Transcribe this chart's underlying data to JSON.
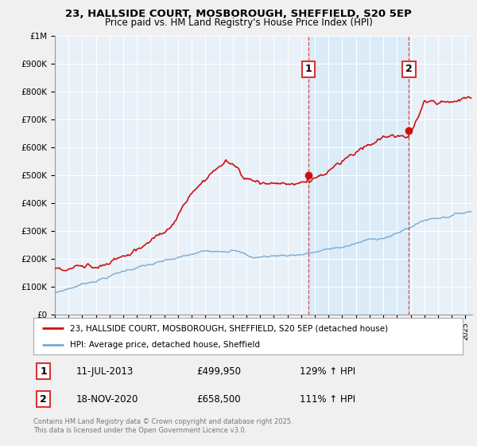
{
  "title": "23, HALLSIDE COURT, MOSBOROUGH, SHEFFIELD, S20 5EP",
  "subtitle": "Price paid vs. HM Land Registry's House Price Index (HPI)",
  "legend_line1": "23, HALLSIDE COURT, MOSBOROUGH, SHEFFIELD, S20 5EP (detached house)",
  "legend_line2": "HPI: Average price, detached house, Sheffield",
  "sale1_date": "11-JUL-2013",
  "sale1_price": "£499,950",
  "sale1_hpi": "129% ↑ HPI",
  "sale1_year": 2013.53,
  "sale1_value": 499950,
  "sale2_date": "18-NOV-2020",
  "sale2_price": "£658,500",
  "sale2_hpi": "111% ↑ HPI",
  "sale2_year": 2020.88,
  "sale2_value": 658500,
  "ylim": [
    0,
    1000000
  ],
  "xlim_start": 1995.0,
  "xlim_end": 2025.5,
  "hpi_color": "#7aaad0",
  "price_color": "#cc1111",
  "vline_color": "#dd3333",
  "shade_color": "#d8eaf7",
  "background_color": "#f0f0f0",
  "plot_bg_color": "#e8f0f8",
  "grid_color": "#cccccc",
  "footer": "Contains HM Land Registry data © Crown copyright and database right 2025.\nThis data is licensed under the Open Government Licence v3.0."
}
